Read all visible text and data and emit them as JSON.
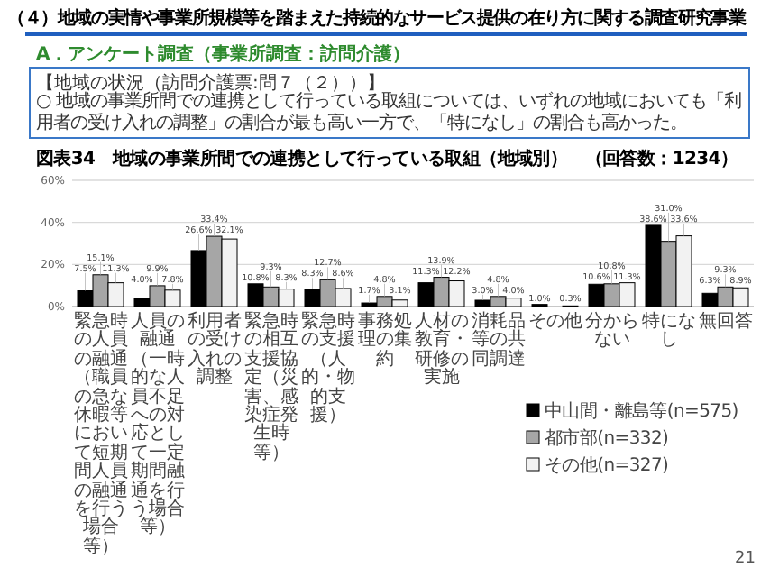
{
  "chart_data": {
    "type": "bar",
    "title": "（４）地域の実情や事業所規模等を踏まえた持続的なサービス提供の在り方に関する調査研究事業",
    "subtitle": "A．アンケート調査（事業所調査：訪問介護）",
    "annotations": [
      "【地域の状況（訪問介護票:問７（２））】",
      "○ 地域の事業所間での連携として行っている取組については、いずれの地域においても「利用者の受け入れの調整」の割合が最も高い一方で、「特になし」の割合も高かった。",
      "図表34　地域の事業所間での連携として行っている取組（地域別）　（回答数：1234）",
      "21"
    ],
    "categories": [
      "緊急時の人員の融通（職員の急な休暇等において短期間人員の融通を行う場合等）",
      "人員の融通（一時的な人員不足への対応として一定期間融通を行う場合等）",
      "利用者の受け入れの調整",
      "緊急時の相互支援協定（災害、感染症発生時等）",
      "緊急時の支援（人的・物的支援）",
      "事務処理の集約",
      "人材の教育・研修の実施",
      "消耗品等の共同調達",
      "その他",
      "分からない",
      "特になし",
      "無回答"
    ],
    "series": [
      {
        "name": "中山間・離島等(n=575)",
        "color": "#000000",
        "values": [
          7.5,
          4.0,
          26.6,
          10.8,
          8.3,
          1.7,
          11.3,
          3.0,
          1.0,
          10.6,
          38.6,
          6.3
        ],
        "value_labels": [
          "7.5%",
          "4.0%",
          "26.6%",
          "10.8%",
          "8.3%",
          "1.7%",
          "11.3%",
          "3.0%",
          "1.0%",
          "10.6%",
          "38.6%",
          "6.3%"
        ]
      },
      {
        "name": "都市部(n=332)",
        "color": "#a6a6a6",
        "values": [
          15.1,
          9.9,
          33.4,
          9.3,
          12.7,
          4.8,
          13.9,
          4.8,
          null,
          10.8,
          31.0,
          9.3
        ],
        "value_labels": [
          "15.1%",
          "9.9%",
          "33.4%",
          "9.3%",
          "12.7%",
          "4.8%",
          "13.9%",
          "4.8%",
          null,
          "10.8%",
          "31.0%",
          "9.3%"
        ]
      },
      {
        "name": "その他(n=327)",
        "color": "#f2f2f2",
        "values": [
          11.3,
          7.8,
          32.1,
          8.3,
          8.6,
          3.1,
          12.2,
          4.0,
          0.3,
          11.3,
          33.6,
          8.9
        ],
        "value_labels": [
          "11.3%",
          "7.8%",
          "32.1%",
          "8.3%",
          "8.6%",
          "3.1%",
          "12.2%",
          "4.0%",
          "0.3%",
          "11.3%",
          "33.6%",
          "8.9%"
        ]
      }
    ],
    "ylim": [
      0,
      60
    ],
    "yticks": [
      {
        "value": 0,
        "label": "0%"
      },
      {
        "value": 20,
        "label": "20%"
      },
      {
        "value": 40,
        "label": "40%"
      },
      {
        "value": 60,
        "label": "60%"
      }
    ],
    "grid": "y",
    "legend": "bottom right"
  }
}
